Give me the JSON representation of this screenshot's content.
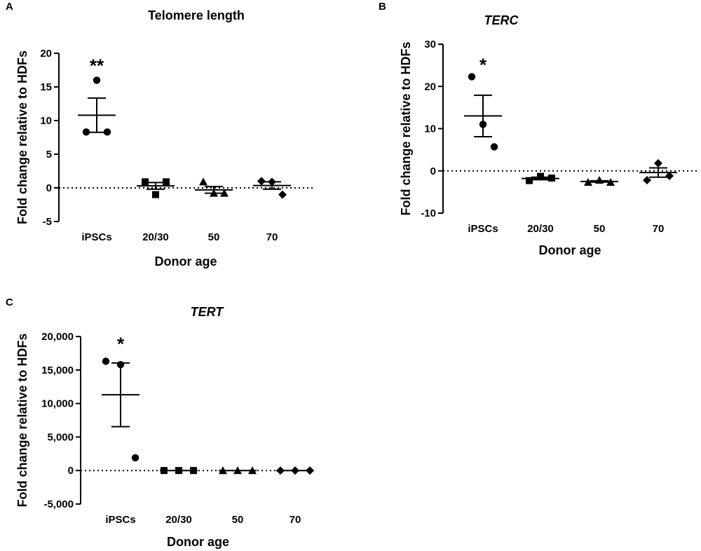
{
  "chart_data": [
    {
      "panel": "A",
      "type": "scatter",
      "title": "Telomere length",
      "title_italic": false,
      "xlabel": "Donor age",
      "ylabel": "Fold change relative to HDFs",
      "categories": [
        "iPSCs",
        "20/30",
        "50",
        "70"
      ],
      "ylim": [
        -5,
        20
      ],
      "yticks": [
        -5,
        0,
        5,
        10,
        15,
        20
      ],
      "ytick_labels": [
        "-5",
        "0",
        "5",
        "10",
        "15",
        "20"
      ],
      "reference_line": 0,
      "series": [
        {
          "name": "iPSCs",
          "marker": "circle",
          "values": [
            8.3,
            16.0,
            8.3
          ],
          "mean": 10.8,
          "sem": 2.55,
          "significance": "**"
        },
        {
          "name": "20/30",
          "marker": "square",
          "values": [
            0.9,
            -1.0,
            0.9
          ],
          "mean": 0.3,
          "sem": 0.5,
          "significance": ""
        },
        {
          "name": "50",
          "marker": "triangle",
          "values": [
            0.9,
            -0.8,
            -0.8
          ],
          "mean": -0.3,
          "sem": 0.5,
          "significance": ""
        },
        {
          "name": "70",
          "marker": "diamond",
          "values": [
            1.0,
            0.9,
            -1.0
          ],
          "mean": 0.35,
          "sem": 0.55,
          "significance": ""
        }
      ]
    },
    {
      "panel": "B",
      "type": "scatter",
      "title": "TERC",
      "title_italic": true,
      "xlabel": "Donor age",
      "ylabel": "Fold change relative to HDFs",
      "categories": [
        "iPSCs",
        "20/30",
        "50",
        "70"
      ],
      "ylim": [
        -10,
        30
      ],
      "yticks": [
        -10,
        0,
        10,
        20,
        30
      ],
      "ytick_labels": [
        "-10",
        "0",
        "10",
        "20",
        "30"
      ],
      "reference_line": 0,
      "series": [
        {
          "name": "iPSCs",
          "marker": "circle",
          "values": [
            22.3,
            11.0,
            5.7
          ],
          "mean": 13.0,
          "sem": 4.9,
          "significance": "*"
        },
        {
          "name": "20/30",
          "marker": "square",
          "values": [
            -2.3,
            -1.3,
            -1.7
          ],
          "mean": -1.8,
          "sem": 0.3,
          "significance": ""
        },
        {
          "name": "50",
          "marker": "triangle",
          "values": [
            -2.7,
            -2.2,
            -2.7
          ],
          "mean": -2.5,
          "sem": 0.15,
          "significance": ""
        },
        {
          "name": "70",
          "marker": "diamond",
          "values": [
            -2.2,
            1.8,
            -1.2
          ],
          "mean": -0.4,
          "sem": 1.1,
          "significance": ""
        }
      ]
    },
    {
      "panel": "C",
      "type": "scatter",
      "title": "TERT",
      "title_italic": true,
      "xlabel": "Donor age",
      "ylabel": "Fold change relative to HDFs",
      "categories": [
        "iPSCs",
        "20/30",
        "50",
        "70"
      ],
      "ylim": [
        -5000,
        20000
      ],
      "yticks": [
        -5000,
        0,
        5000,
        10000,
        15000,
        20000
      ],
      "ytick_labels": [
        "-5,000",
        "0",
        "5,000",
        "10,000",
        "15,000",
        "20,000"
      ],
      "reference_line": 0,
      "series": [
        {
          "name": "iPSCs",
          "marker": "circle",
          "values": [
            16300,
            15800,
            1900
          ],
          "mean": 11300,
          "sem": 4750,
          "significance": "*"
        },
        {
          "name": "20/30",
          "marker": "square",
          "values": [
            0,
            0,
            0
          ],
          "mean": 0,
          "sem": 0,
          "significance": ""
        },
        {
          "name": "50",
          "marker": "triangle",
          "values": [
            0,
            0,
            0
          ],
          "mean": 0,
          "sem": 0,
          "significance": ""
        },
        {
          "name": "70",
          "marker": "diamond",
          "values": [
            0,
            0,
            0
          ],
          "mean": 0,
          "sem": 0,
          "significance": ""
        }
      ]
    }
  ]
}
